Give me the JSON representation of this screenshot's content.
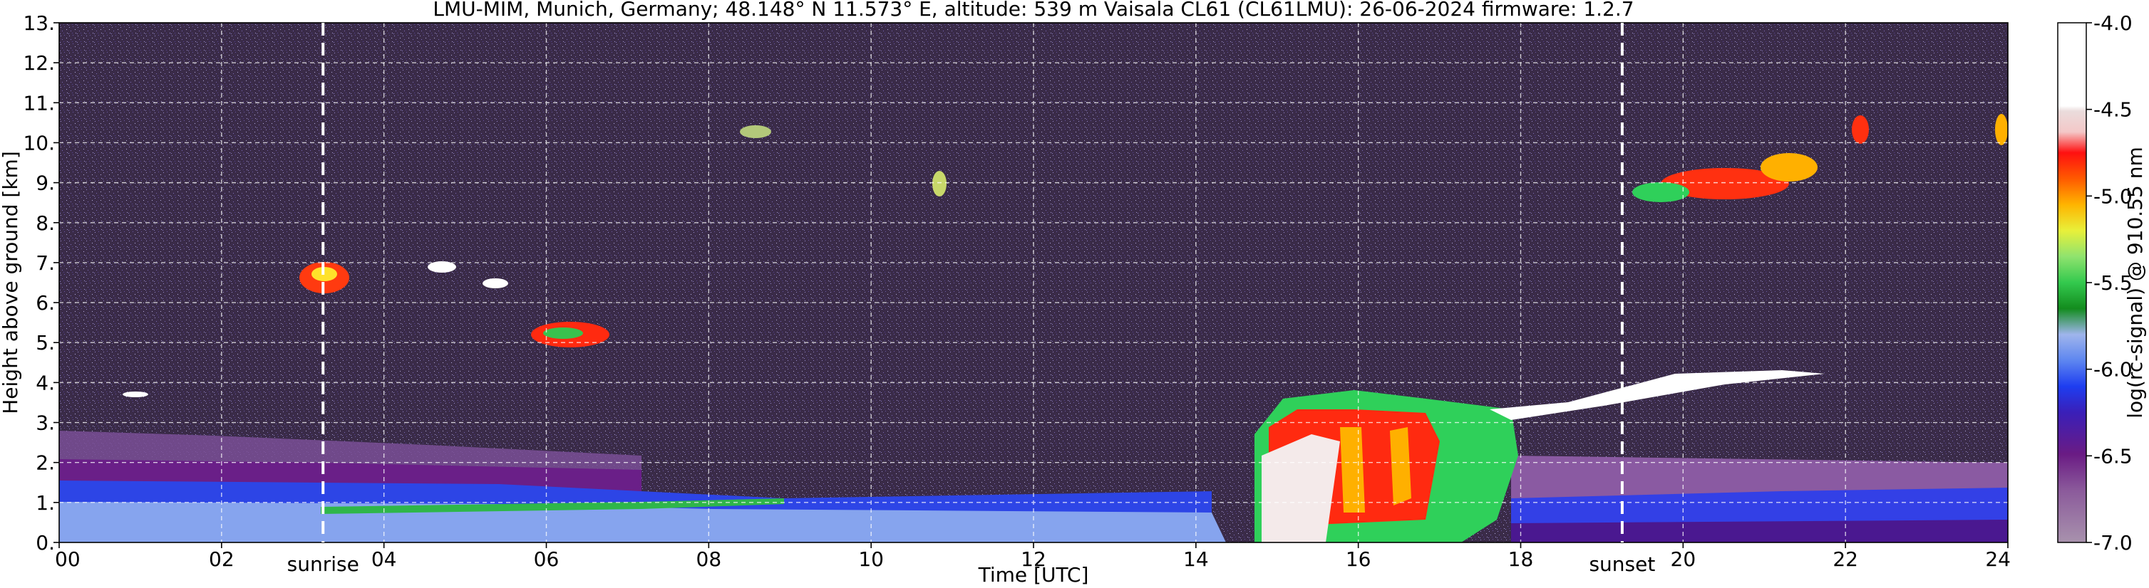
{
  "chart_data": {
    "type": "heatmap",
    "title": "LMU-MIM, Munich, Germany; 48.148° N 11.573° E, altitude: 539 m    Vaisala CL61 (CL61LMU): 26-06-2024    firmware: 1.2.7",
    "xlabel": "Time [UTC]",
    "ylabel": "Height above ground [km]",
    "colorbar_label": "log(rc-signal) @ 910.55 nm",
    "xlim": [
      0,
      24
    ],
    "ylim": [
      0,
      13
    ],
    "x_ticks": [
      0,
      2,
      4,
      6,
      8,
      10,
      12,
      14,
      16,
      18,
      20,
      22,
      24
    ],
    "x_tick_labels": [
      "00",
      "02",
      "04",
      "06",
      "08",
      "10",
      "12",
      "14",
      "16",
      "18",
      "20",
      "22",
      "24"
    ],
    "y_ticks": [
      0,
      1,
      2,
      3,
      4,
      5,
      6,
      7,
      8,
      9,
      10,
      11,
      12,
      13
    ],
    "y_tick_labels": [
      "0.",
      "1.",
      "2.",
      "3.",
      "4.",
      "5.",
      "6.",
      "7.",
      "8.",
      "9.",
      "10.",
      "11.",
      "12.",
      "13."
    ],
    "colorbar_range": [
      -7.0,
      -4.0
    ],
    "colorbar_ticks": [
      -7.0,
      -6.5,
      -6.0,
      -5.5,
      -5.0,
      -4.5,
      -4.0
    ],
    "colorbar_tick_labels": [
      "-7.0",
      "-6.5",
      "-6.0",
      "-5.5",
      "-5.0",
      "-4.5",
      "-4.0"
    ],
    "grid": true,
    "annotations": [
      {
        "label": "sunrise",
        "x": 3.25
      },
      {
        "label": "sunset",
        "x": 19.25
      }
    ],
    "colors": {
      "background_noise": "#3b2a4a",
      "boundary_layer": "#6f88e8",
      "strong": "#ff2000",
      "saturated": "#ffffff"
    }
  }
}
